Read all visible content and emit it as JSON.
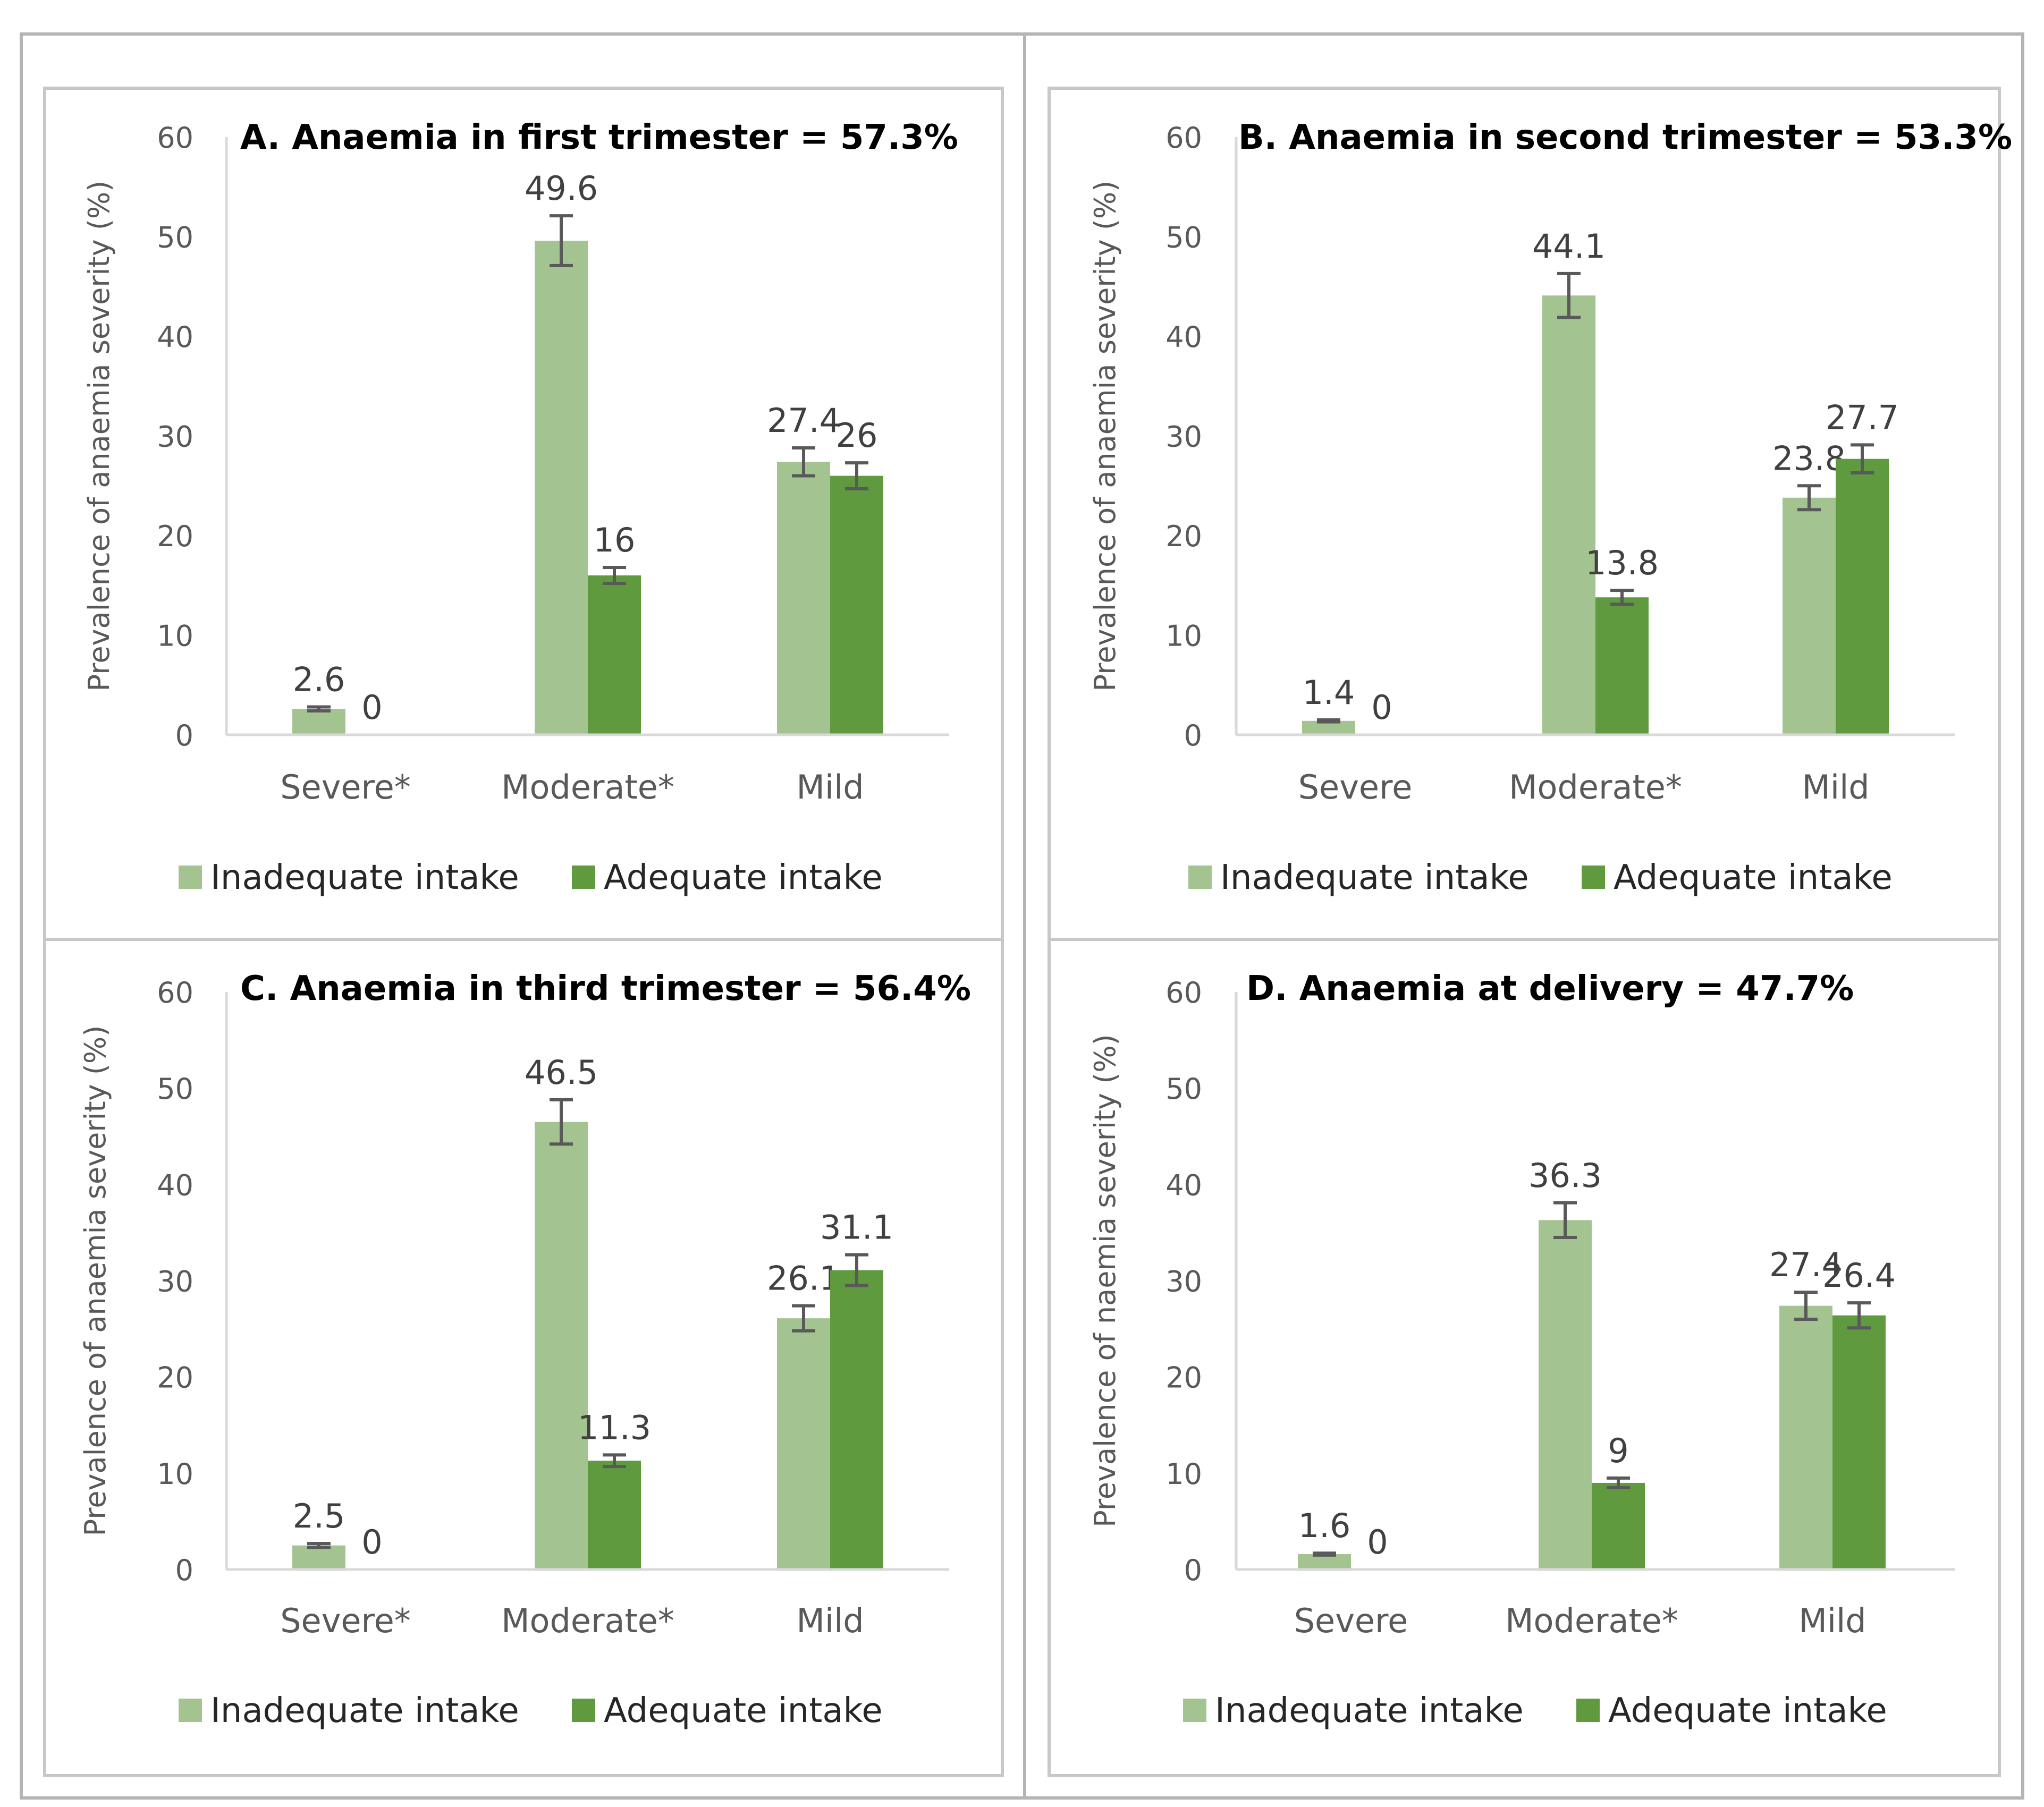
{
  "colors": {
    "inadequate": "#a3c490",
    "adequate": "#5f9a3f"
  },
  "chart_data": [
    {
      "type": "bar",
      "title": "A. Anaemia in first trimester = 57.3%",
      "ylabel": "Prevalence of anaemia severity (%)",
      "ylim": [
        0,
        60
      ],
      "yticks": [
        "0",
        "10",
        "20",
        "30",
        "40",
        "50",
        "60"
      ],
      "categories": [
        "Severe*",
        "Moderate*",
        "Mild"
      ],
      "series": [
        {
          "name": "Inadequate intake",
          "values": [
            2.6,
            49.6,
            27.4
          ],
          "labels": [
            "2.6",
            "49.6",
            "27.4"
          ],
          "error": [
            0.2,
            2.5,
            1.4
          ]
        },
        {
          "name": "Adequate intake",
          "values": [
            0,
            16,
            26
          ],
          "labels": [
            "0",
            "16",
            "26"
          ],
          "error": [
            0,
            0.8,
            1.3
          ]
        }
      ],
      "legend": "bottom"
    },
    {
      "type": "bar",
      "title": "B. Anaemia in second trimester = 53.3%",
      "ylabel": "Prevalence of anaemia severity (%)",
      "ylim": [
        0,
        60
      ],
      "yticks": [
        "0",
        "10",
        "20",
        "30",
        "40",
        "50",
        "60"
      ],
      "categories": [
        "Severe",
        "Moderate*",
        "Mild"
      ],
      "series": [
        {
          "name": "Inadequate intake",
          "values": [
            1.4,
            44.1,
            23.8
          ],
          "labels": [
            "1.4",
            "44.1",
            "23.8"
          ],
          "error": [
            0.1,
            2.2,
            1.2
          ]
        },
        {
          "name": "Adequate intake",
          "values": [
            0,
            13.8,
            27.7
          ],
          "labels": [
            "0",
            "13.8",
            "27.7"
          ],
          "error": [
            0,
            0.7,
            1.4
          ]
        }
      ],
      "legend": "bottom"
    },
    {
      "type": "bar",
      "title": "C. Anaemia in third trimester = 56.4%",
      "ylabel": "Prevalence of anaemia severity (%)",
      "ylim": [
        0,
        60
      ],
      "yticks": [
        "0",
        "10",
        "20",
        "30",
        "40",
        "50",
        "60"
      ],
      "categories": [
        "Severe*",
        "Moderate*",
        "Mild"
      ],
      "series": [
        {
          "name": "Inadequate intake",
          "values": [
            2.5,
            46.5,
            26.1
          ],
          "labels": [
            "2.5",
            "46.5",
            "26.1"
          ],
          "error": [
            0.2,
            2.3,
            1.3
          ]
        },
        {
          "name": "Adequate intake",
          "values": [
            0,
            11.3,
            31.1
          ],
          "labels": [
            "0",
            "11.3",
            "31.1"
          ],
          "error": [
            0,
            0.6,
            1.6
          ]
        }
      ],
      "legend": "bottom"
    },
    {
      "type": "bar",
      "title": "D. Anaemia at delivery = 47.7%",
      "ylabel": "Prevalence of naemia severity (%)",
      "ylim": [
        0,
        60
      ],
      "yticks": [
        "0",
        "10",
        "20",
        "30",
        "40",
        "50",
        "60"
      ],
      "categories": [
        "Severe",
        "Moderate*",
        "Mild"
      ],
      "series": [
        {
          "name": "Inadequate intake",
          "values": [
            1.6,
            36.3,
            27.4
          ],
          "labels": [
            "1.6",
            "36.3",
            "27.4"
          ],
          "error": [
            0.1,
            1.8,
            1.4
          ]
        },
        {
          "name": "Adequate intake",
          "values": [
            0,
            9,
            26.4
          ],
          "labels": [
            "0",
            "9",
            "26.4"
          ],
          "error": [
            0,
            0.5,
            1.3
          ]
        }
      ],
      "legend": "bottom"
    }
  ]
}
